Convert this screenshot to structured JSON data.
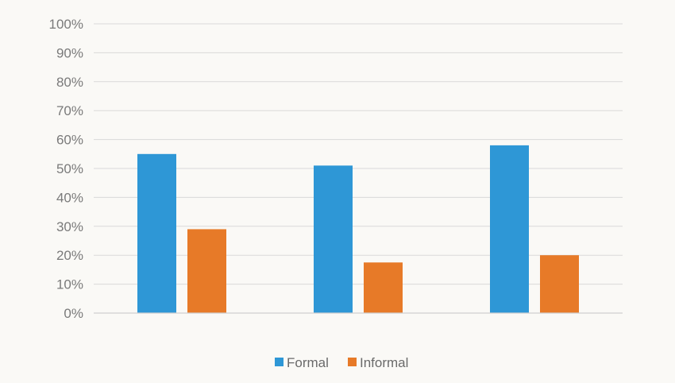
{
  "chart_data": {
    "type": "bar",
    "title": "",
    "xlabel": "",
    "ylabel": "",
    "categories": [
      "",
      "",
      ""
    ],
    "ylim": [
      0,
      100
    ],
    "y_ticks": [
      "0%",
      "10%",
      "20%",
      "30%",
      "40%",
      "50%",
      "60%",
      "70%",
      "80%",
      "90%",
      "100%"
    ],
    "grid": true,
    "legend_position": "bottom-center",
    "series": [
      {
        "name": "Formal",
        "color": "#2e97d6",
        "values": [
          55,
          51,
          58
        ]
      },
      {
        "name": "Informal",
        "color": "#e77a28",
        "values": [
          29,
          17.5,
          20
        ]
      }
    ]
  }
}
